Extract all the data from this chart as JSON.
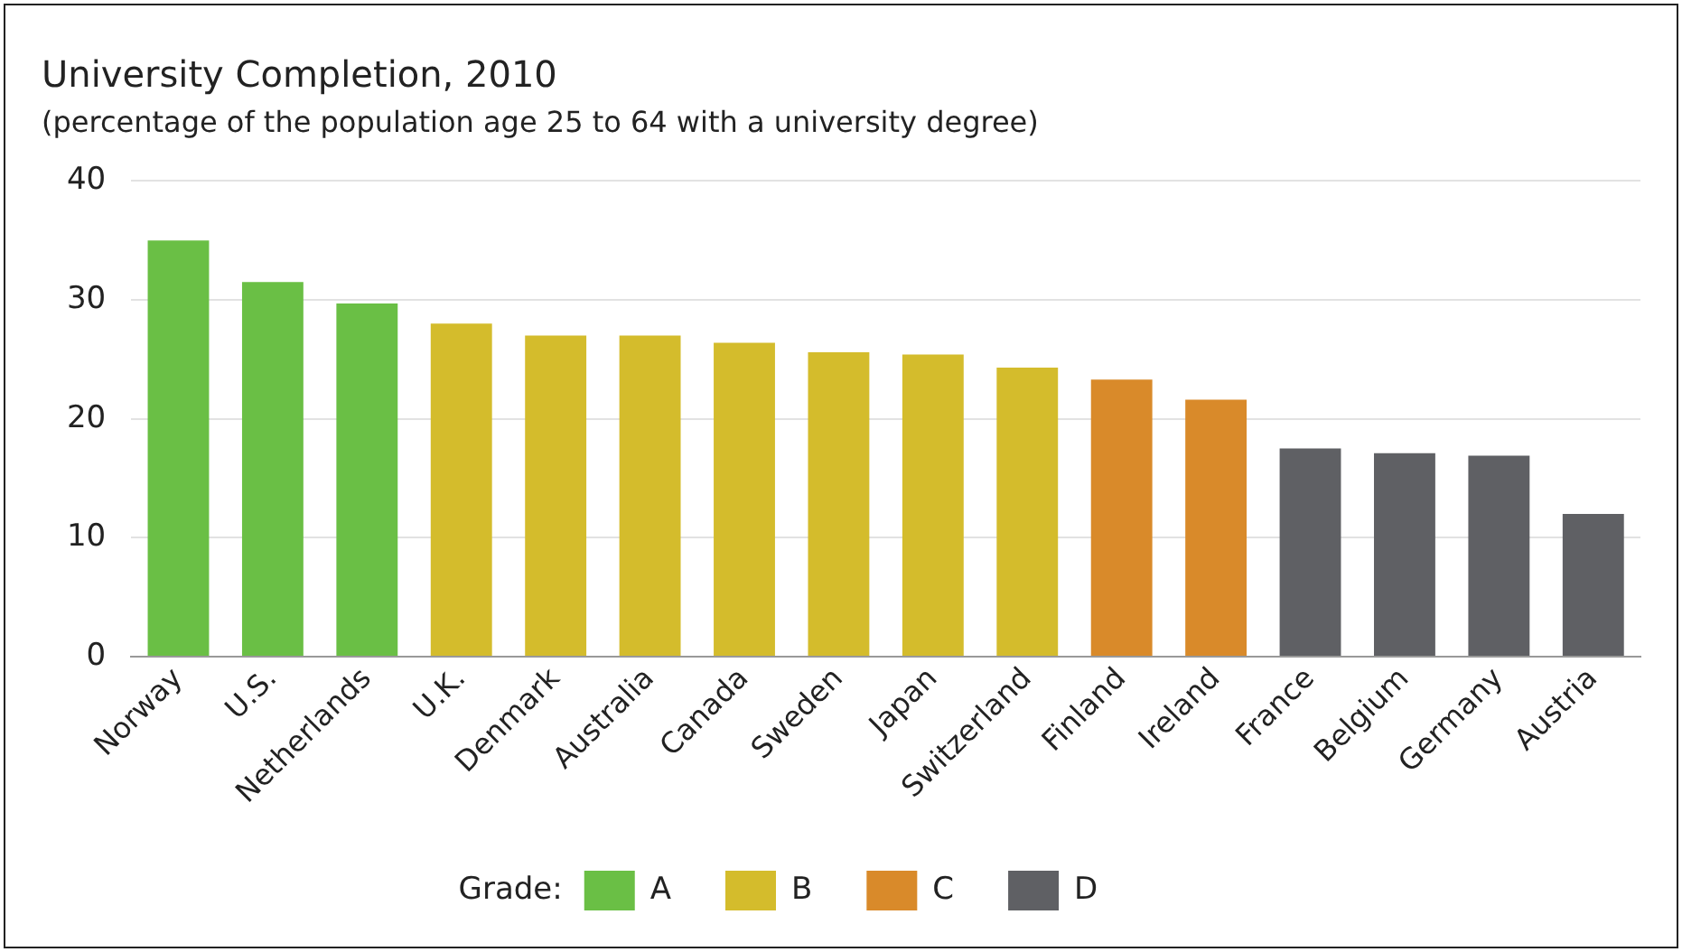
{
  "chart_data": {
    "type": "bar",
    "title": "University Completion, 2010",
    "subtitle": "(percentage of the population age 25 to 64 with a university degree)",
    "legend_title": "Grade:",
    "categories": [
      "Norway",
      "U.S.",
      "Netherlands",
      "U.K.",
      "Denmark",
      "Australia",
      "Canada",
      "Sweden",
      "Japan",
      "Switzerland",
      "Finland",
      "Ireland",
      "France",
      "Belgium",
      "Germany",
      "Austria"
    ],
    "series": [
      {
        "name": "A",
        "color": "#6abf45",
        "values": [
          35.0,
          31.5,
          29.7,
          null,
          null,
          null,
          null,
          null,
          null,
          null,
          null,
          null,
          null,
          null,
          null,
          null
        ]
      },
      {
        "name": "B",
        "color": "#d4bc2c",
        "values": [
          null,
          null,
          null,
          28.0,
          27.0,
          27.0,
          26.4,
          25.6,
          25.4,
          24.3,
          null,
          null,
          null,
          null,
          null,
          null
        ]
      },
      {
        "name": "C",
        "color": "#d98a2a",
        "values": [
          null,
          null,
          null,
          null,
          null,
          null,
          null,
          null,
          null,
          null,
          23.3,
          21.6,
          null,
          null,
          null,
          null
        ]
      },
      {
        "name": "D",
        "color": "#5f6064",
        "values": [
          null,
          null,
          null,
          null,
          null,
          null,
          null,
          null,
          null,
          null,
          null,
          null,
          17.5,
          17.1,
          16.9,
          12.0
        ]
      }
    ],
    "ylim": [
      0,
      40
    ],
    "yticks": [
      0,
      10,
      20,
      30,
      40
    ],
    "grid": "y",
    "legend": "bottom"
  }
}
